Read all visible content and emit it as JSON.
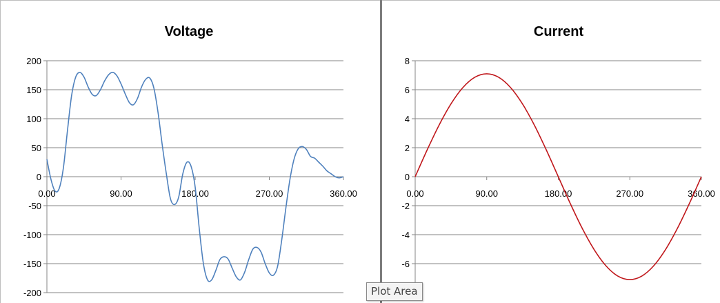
{
  "tooltip": "Plot Area",
  "colors": {
    "voltage": "#4f81bd",
    "current": "#c0181c",
    "gridline": "#868686",
    "axis": "#868686"
  },
  "chart_data": [
    {
      "type": "line",
      "title": "Voltage",
      "xlabel": "",
      "ylabel": "",
      "xlim": [
        0,
        360
      ],
      "ylim": [
        -200,
        200
      ],
      "y_ticks": [
        200,
        150,
        100,
        50,
        0,
        -50,
        -100,
        -150,
        -200
      ],
      "y_tick_labels": [
        "200",
        "150",
        "100",
        "50",
        "0",
        "-50",
        "-100",
        "-150",
        "-200"
      ],
      "x_ticks": [
        0,
        90,
        180,
        270,
        360
      ],
      "x_tick_labels": [
        "0.00",
        "90.00",
        "180.00",
        "270.00",
        "360.00"
      ],
      "grid": true,
      "series": [
        {
          "x": [
            0,
            5,
            10,
            15,
            20,
            25,
            30,
            35,
            40,
            45,
            50,
            55,
            60,
            65,
            70,
            75,
            80,
            85,
            90,
            95,
            100,
            105,
            110,
            115,
            120,
            125,
            130,
            135,
            140,
            145,
            150,
            155,
            160,
            165,
            170,
            175,
            180,
            185,
            190,
            195,
            200,
            205,
            210,
            215,
            220,
            225,
            230,
            235,
            240,
            245,
            250,
            255,
            260,
            265,
            270,
            275,
            280,
            285,
            290,
            295,
            300,
            305,
            310,
            315,
            320,
            325,
            330,
            335,
            340,
            345,
            350,
            355,
            360
          ],
          "y": [
            30,
            -5,
            -25,
            -20,
            15,
            80,
            140,
            172,
            180,
            172,
            155,
            142,
            140,
            150,
            165,
            176,
            180,
            174,
            160,
            143,
            128,
            124,
            135,
            155,
            168,
            170,
            152,
            110,
            55,
            5,
            -38,
            -48,
            -35,
            5,
            25,
            18,
            -18,
            -90,
            -150,
            -178,
            -178,
            -162,
            -143,
            -138,
            -142,
            -158,
            -173,
            -178,
            -165,
            -143,
            -125,
            -122,
            -130,
            -150,
            -166,
            -170,
            -155,
            -110,
            -55,
            -5,
            30,
            48,
            52,
            47,
            35,
            32,
            25,
            18,
            10,
            5,
            0,
            -2,
            0
          ]
        }
      ]
    },
    {
      "type": "line",
      "title": "Current",
      "xlabel": "",
      "ylabel": "",
      "xlim": [
        0,
        360
      ],
      "ylim": [
        -8,
        8
      ],
      "y_ticks": [
        8,
        6,
        4,
        2,
        0,
        -2,
        -4,
        -6
      ],
      "y_tick_labels": [
        "8",
        "6",
        "4",
        "2",
        "0",
        "-2",
        "-4",
        "-6"
      ],
      "x_ticks": [
        0,
        90,
        180,
        270,
        360
      ],
      "x_tick_labels": [
        "0.00",
        "90.00",
        "180.00",
        "270.00",
        "360.00"
      ],
      "grid": true,
      "series": [
        {
          "x": [
            0,
            15,
            30,
            45,
            60,
            75,
            90,
            105,
            120,
            135,
            150,
            165,
            180,
            195,
            210,
            225,
            240,
            255,
            270,
            285,
            300,
            315,
            330,
            345,
            360
          ],
          "y": [
            0,
            1.84,
            3.55,
            5.02,
            6.15,
            6.86,
            7.1,
            6.86,
            6.15,
            5.02,
            3.55,
            1.84,
            0,
            -1.84,
            -3.55,
            -5.02,
            -6.15,
            -6.86,
            -7.1,
            -6.86,
            -6.15,
            -5.02,
            -3.55,
            -1.84,
            0
          ]
        }
      ]
    }
  ]
}
